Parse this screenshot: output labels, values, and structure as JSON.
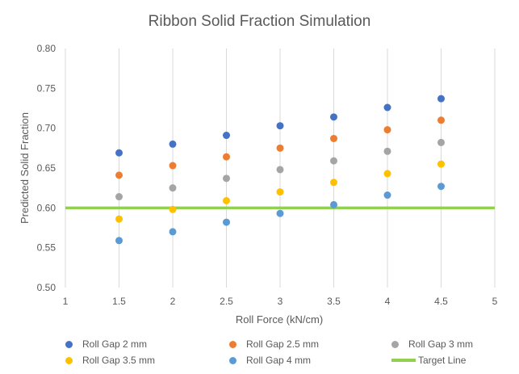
{
  "chart_data": {
    "type": "scatter",
    "title": "Ribbon Solid Fraction Simulation",
    "xlabel": "Roll Force (kN/cm)",
    "ylabel": "Predicted Solid Fraction",
    "xlim": [
      1,
      5
    ],
    "ylim": [
      0.5,
      0.8
    ],
    "xticks": [
      "1",
      "1.5",
      "2",
      "2.5",
      "3",
      "3.5",
      "4",
      "4.5",
      "5"
    ],
    "yticks": [
      "0.50",
      "0.55",
      "0.60",
      "0.65",
      "0.70",
      "0.75",
      "0.80"
    ],
    "grid": "vertical",
    "legend_position": "bottom",
    "x": [
      1.5,
      2,
      2.5,
      3,
      3.5,
      4,
      4.5
    ],
    "series": [
      {
        "name": "Roll Gap 2 mm",
        "color": "#4472C4",
        "values": [
          0.669,
          0.68,
          0.691,
          0.703,
          0.714,
          0.726,
          0.737
        ]
      },
      {
        "name": "Roll Gap 2.5 mm",
        "color": "#ED7D31",
        "values": [
          0.641,
          0.653,
          0.664,
          0.675,
          0.687,
          0.698,
          0.71
        ]
      },
      {
        "name": "Roll Gap 3 mm",
        "color": "#A5A5A5",
        "values": [
          0.614,
          0.625,
          0.637,
          0.648,
          0.659,
          0.671,
          0.682
        ]
      },
      {
        "name": "Roll Gap 3.5 mm",
        "color": "#FFC000",
        "values": [
          0.586,
          0.598,
          0.609,
          0.62,
          0.632,
          0.643,
          0.655
        ]
      },
      {
        "name": "Roll Gap 4 mm",
        "color": "#5B9BD5",
        "values": [
          0.559,
          0.57,
          0.582,
          0.593,
          0.604,
          0.616,
          0.627
        ]
      }
    ],
    "target_line": {
      "name": "Target Line",
      "color": "#92D050",
      "value": 0.6
    }
  }
}
